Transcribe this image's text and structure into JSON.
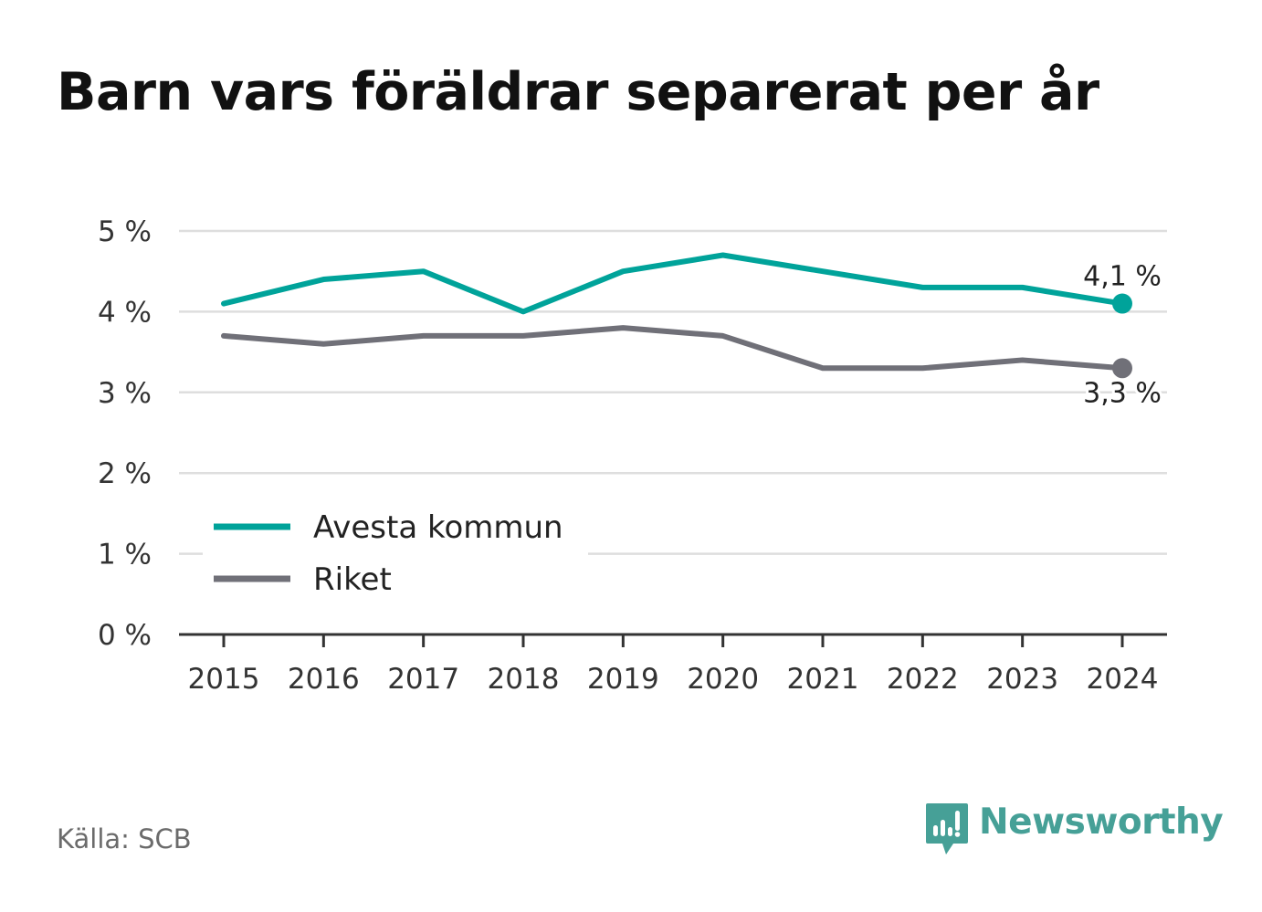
{
  "title": "Barn vars föräldrar separerat per år",
  "source": "Källa: SCB",
  "brand": {
    "name": "Newsworthy",
    "icon": "newsworthy-logo-icon",
    "color": "#46a097"
  },
  "chart_data": {
    "type": "line",
    "x": [
      2015,
      2016,
      2017,
      2018,
      2019,
      2020,
      2021,
      2022,
      2023,
      2024
    ],
    "x_tick_labels": [
      "2015",
      "2016",
      "2017",
      "2018",
      "2019",
      "2020",
      "2021",
      "2022",
      "2023",
      "2024"
    ],
    "ylim": [
      0,
      5
    ],
    "y_ticks": [
      0,
      1,
      2,
      3,
      4,
      5
    ],
    "y_tick_labels": [
      "0 %",
      "1 %",
      "2 %",
      "3 %",
      "4 %",
      "5 %"
    ],
    "grid": true,
    "legend_position": "lower-left",
    "series": [
      {
        "name": "Avesta kommun",
        "color": "#00a39a",
        "values": [
          4.1,
          4.4,
          4.5,
          4.0,
          4.5,
          4.7,
          4.5,
          4.3,
          4.3,
          4.1
        ],
        "end_label": "4,1 %"
      },
      {
        "name": "Riket",
        "color": "#707078",
        "values": [
          3.7,
          3.6,
          3.7,
          3.7,
          3.8,
          3.7,
          3.3,
          3.3,
          3.4,
          3.3
        ],
        "end_label": "3,3 %"
      }
    ]
  }
}
